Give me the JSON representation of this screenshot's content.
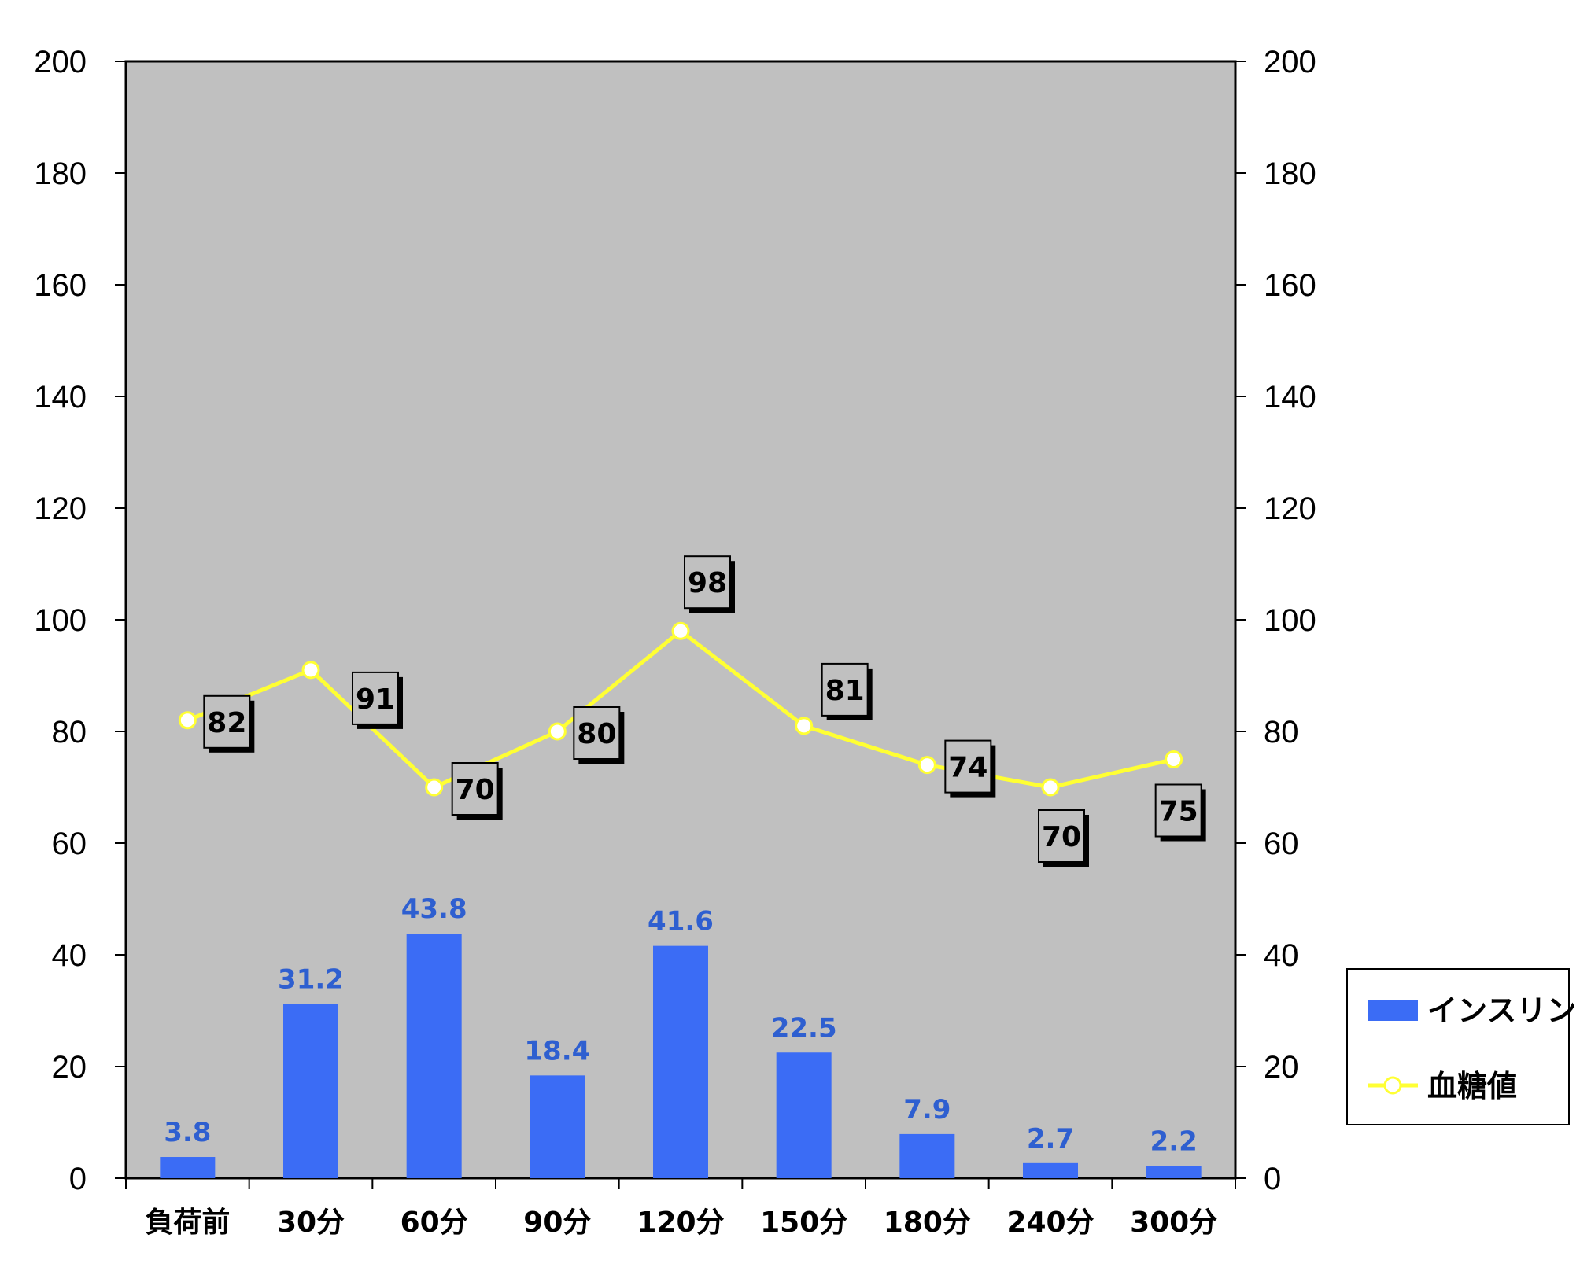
{
  "chart_data": {
    "type": "bar",
    "categories": [
      "負荷前",
      "30分",
      "60分",
      "90分",
      "120分",
      "150分",
      "180分",
      "240分",
      "300分"
    ],
    "series": [
      {
        "name": "インスリン",
        "type": "bar",
        "values": [
          3.8,
          31.2,
          43.8,
          18.4,
          41.6,
          22.5,
          7.9,
          2.7,
          2.2
        ],
        "color": "#3b6cf5"
      },
      {
        "name": "血糖値",
        "type": "line",
        "values": [
          82,
          91,
          70,
          80,
          98,
          81,
          74,
          70,
          75
        ],
        "color": "#ffff33"
      }
    ],
    "ylim": [
      0,
      200
    ],
    "y2lim": [
      0,
      200
    ],
    "yticks": [
      "0",
      "20",
      "40",
      "60",
      "80",
      "100",
      "120",
      "140",
      "160",
      "180",
      "200"
    ],
    "y2ticks": [
      "0",
      "20",
      "40",
      "60",
      "80",
      "100",
      "120",
      "140",
      "160",
      "180",
      "200"
    ],
    "bar_labels": [
      "3.8",
      "31.2",
      "43.8",
      "18.4",
      "41.6",
      "22.5",
      "7.9",
      "2.7",
      "2.2"
    ],
    "line_labels": [
      "82",
      "91",
      "70",
      "80",
      "98",
      "81",
      "74",
      "70",
      "75"
    ],
    "grid": false,
    "legend": "right",
    "plot_background": "#c0c0c0",
    "bar_label_color": "#2e5fd0"
  }
}
